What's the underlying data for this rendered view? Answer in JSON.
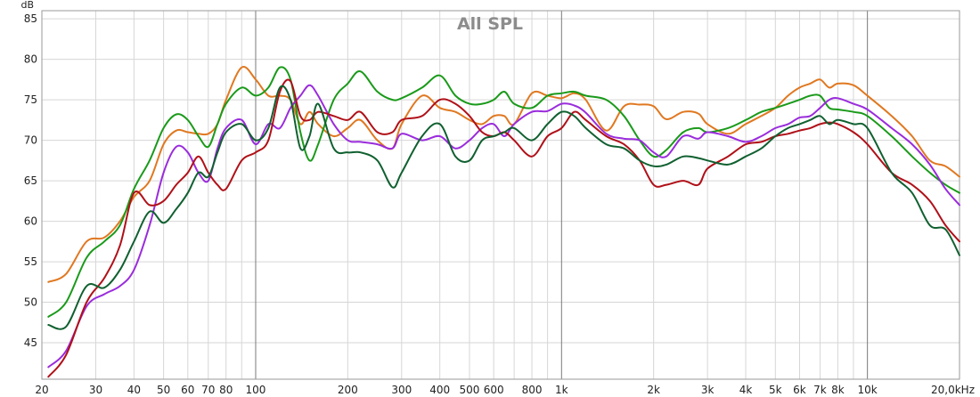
{
  "chart_data": {
    "type": "line",
    "title": "All SPL",
    "ylabel": "dB",
    "xscale": "log",
    "xlim": [
      20,
      20000
    ],
    "ylim": [
      40.5,
      86
    ],
    "grid": true,
    "x_ticks": [
      {
        "value": 20,
        "label": "20"
      },
      {
        "value": 30,
        "label": "30"
      },
      {
        "value": 40,
        "label": "40"
      },
      {
        "value": 50,
        "label": "50"
      },
      {
        "value": 60,
        "label": "60"
      },
      {
        "value": 70,
        "label": "70"
      },
      {
        "value": 80,
        "label": "80"
      },
      {
        "value": 100,
        "label": "100"
      },
      {
        "value": 200,
        "label": "200"
      },
      {
        "value": 300,
        "label": "300"
      },
      {
        "value": 400,
        "label": "400"
      },
      {
        "value": 500,
        "label": "500"
      },
      {
        "value": 600,
        "label": "600"
      },
      {
        "value": 800,
        "label": "800"
      },
      {
        "value": 1000,
        "label": "1k"
      },
      {
        "value": 2000,
        "label": "2k"
      },
      {
        "value": 3000,
        "label": "3k"
      },
      {
        "value": 4000,
        "label": "4k"
      },
      {
        "value": 5000,
        "label": "5k"
      },
      {
        "value": 6000,
        "label": "6k"
      },
      {
        "value": 7000,
        "label": "7k"
      },
      {
        "value": 8000,
        "label": "8k"
      },
      {
        "value": 10000,
        "label": "10k"
      },
      {
        "value": 20000,
        "label": "20,0kHz"
      }
    ],
    "y_ticks": [
      {
        "value": 45,
        "label": "45"
      },
      {
        "value": 50,
        "label": "50"
      },
      {
        "value": 55,
        "label": "55"
      },
      {
        "value": 60,
        "label": "60"
      },
      {
        "value": 65,
        "label": "65"
      },
      {
        "value": 70,
        "label": "70"
      },
      {
        "value": 75,
        "label": "75"
      },
      {
        "value": 80,
        "label": "80"
      },
      {
        "value": 85,
        "label": "85"
      }
    ],
    "x": [
      21,
      24,
      28,
      32,
      36,
      40,
      45,
      50,
      55,
      60,
      65,
      70,
      75,
      80,
      90,
      100,
      110,
      120,
      130,
      140,
      150,
      160,
      180,
      200,
      220,
      250,
      280,
      300,
      350,
      400,
      450,
      500,
      550,
      600,
      650,
      700,
      800,
      900,
      1000,
      1100,
      1200,
      1400,
      1600,
      1800,
      2000,
      2200,
      2500,
      2800,
      3000,
      3500,
      4000,
      4500,
      5000,
      5500,
      6000,
      6500,
      7000,
      7500,
      8000,
      9000,
      10000,
      12000,
      14000,
      16000,
      18000,
      20000
    ],
    "series": [
      {
        "color": "#e07820",
        "values": [
          52.5,
          53.5,
          57.5,
          58.0,
          60.0,
          63.0,
          65.0,
          69.5,
          71.2,
          71.0,
          70.8,
          70.8,
          72.0,
          75.0,
          79.0,
          77.5,
          75.5,
          75.5,
          75.0,
          72.0,
          73.5,
          72.0,
          70.5,
          71.5,
          72.5,
          70.0,
          69.0,
          72.0,
          75.5,
          74.0,
          73.5,
          72.5,
          72.0,
          73.0,
          73.0,
          72.0,
          75.8,
          75.5,
          75.2,
          75.8,
          75.0,
          71.2,
          74.2,
          74.4,
          74.2,
          72.6,
          73.5,
          73.3,
          72.0,
          70.8,
          72.0,
          73.0,
          74.0,
          75.5,
          76.5,
          77.0,
          77.5,
          76.5,
          77.0,
          76.8,
          75.5,
          73.0,
          70.5,
          67.5,
          66.8,
          65.5
        ]
      },
      {
        "color": "#1a9a1a",
        "values": [
          48.2,
          50.0,
          55.5,
          57.5,
          59.5,
          64.0,
          67.5,
          71.5,
          73.2,
          72.5,
          70.5,
          69.2,
          72.0,
          74.5,
          76.5,
          75.5,
          76.5,
          79.0,
          77.5,
          71.0,
          67.5,
          69.5,
          75.0,
          77.0,
          78.5,
          76.0,
          75.0,
          75.2,
          76.5,
          78.0,
          75.5,
          74.5,
          74.5,
          75.0,
          76.0,
          74.5,
          74.0,
          75.5,
          75.8,
          76.0,
          75.5,
          75.0,
          73.0,
          70.0,
          68.0,
          68.8,
          71.0,
          71.5,
          71.0,
          71.5,
          72.5,
          73.5,
          74.0,
          74.5,
          75.0,
          75.5,
          75.5,
          74.0,
          73.8,
          73.5,
          73.0,
          70.5,
          68.0,
          66.0,
          64.5,
          63.5
        ]
      },
      {
        "color": "#9a2cdc",
        "values": [
          42.0,
          44.0,
          49.5,
          51.0,
          52.0,
          54.0,
          59.5,
          66.0,
          69.2,
          68.5,
          66.0,
          65.0,
          69.0,
          71.5,
          72.5,
          69.5,
          72.0,
          71.5,
          74.0,
          75.5,
          76.8,
          75.5,
          72.0,
          70.0,
          69.8,
          69.5,
          69.0,
          70.8,
          70.0,
          70.5,
          69.0,
          70.0,
          71.5,
          72.0,
          70.5,
          72.0,
          73.5,
          73.6,
          74.5,
          74.3,
          73.4,
          70.8,
          70.2,
          70.0,
          68.5,
          68.0,
          70.5,
          70.2,
          71.0,
          70.5,
          69.8,
          70.5,
          71.5,
          72.0,
          72.8,
          73.0,
          74.0,
          75.0,
          75.2,
          74.5,
          73.8,
          71.5,
          69.5,
          67.0,
          64.0,
          62.0
        ]
      },
      {
        "color": "#b01018",
        "values": [
          40.8,
          43.5,
          50.0,
          53.0,
          57.0,
          63.5,
          62.0,
          62.5,
          64.5,
          66.0,
          68.0,
          66.0,
          64.5,
          64.0,
          67.5,
          68.5,
          70.0,
          76.0,
          77.3,
          73.0,
          72.5,
          73.5,
          73.0,
          72.5,
          73.5,
          71.0,
          71.0,
          72.5,
          73.0,
          75.0,
          74.5,
          73.0,
          71.0,
          70.5,
          71.0,
          70.0,
          68.0,
          70.5,
          71.5,
          73.5,
          72.5,
          70.5,
          69.5,
          67.5,
          64.5,
          64.5,
          65.0,
          64.5,
          66.5,
          68.0,
          69.5,
          69.8,
          70.5,
          70.8,
          71.2,
          71.5,
          72.0,
          72.2,
          72.0,
          71.0,
          69.5,
          66.0,
          64.5,
          62.5,
          59.5,
          57.5
        ]
      },
      {
        "color": "#106030",
        "values": [
          47.2,
          47.0,
          52.0,
          51.8,
          54.0,
          57.5,
          61.2,
          59.8,
          61.5,
          63.5,
          66.0,
          65.5,
          68.5,
          71.0,
          72.0,
          70.0,
          71.5,
          76.5,
          75.0,
          69.0,
          70.5,
          74.5,
          69.0,
          68.5,
          68.5,
          67.5,
          64.2,
          66.0,
          70.5,
          72.0,
          68.0,
          67.5,
          70.0,
          70.5,
          71.0,
          71.5,
          70.0,
          72.0,
          73.5,
          73.0,
          71.5,
          69.5,
          69.0,
          67.5,
          66.8,
          67.0,
          68.0,
          67.8,
          67.5,
          67.0,
          68.0,
          69.0,
          70.5,
          71.5,
          72.0,
          72.5,
          73.0,
          72.0,
          72.5,
          72.0,
          71.5,
          66.0,
          63.5,
          59.5,
          59.0,
          55.8
        ]
      }
    ]
  }
}
